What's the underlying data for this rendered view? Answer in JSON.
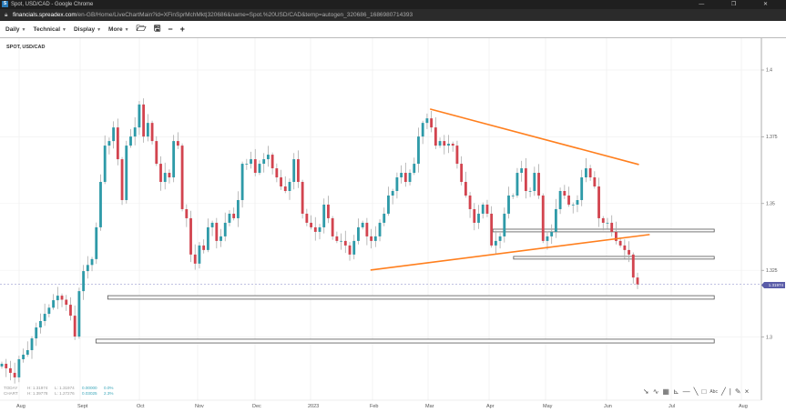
{
  "window": {
    "title": "Spot, USD/CAD - Google Chrome",
    "logo": "S",
    "url_host": "financials.spreadex.com",
    "url_path": "/en-GB/Home/LiveChartMain?id=XFinSprMchMkt|320686&name=Spot.%20USD/CAD&temp=autogen_320686_1686980714393",
    "controls": "— ❐ ✕"
  },
  "toolbar": {
    "menus": [
      "Daily",
      "Technical",
      "Display",
      "More"
    ],
    "icons": [
      "folder-open-icon",
      "save-icon",
      "zoom-out-icon",
      "zoom-in-icon"
    ]
  },
  "symbol": "SPOT, USD/CAD",
  "stats": {
    "today": {
      "label": "TODAY",
      "high": "H: 1.31974",
      "low": "L: 1.31974",
      "change": "0.00000",
      "pct": "0.0%"
    },
    "chart": {
      "label": "CHART",
      "high": "H: 1.39778",
      "low": "L: 1.27276",
      "change": "0.03025",
      "pct": "2.3%"
    }
  },
  "drawing_tools": [
    "arrow-icon",
    "curve-icon",
    "grid-icon",
    "fan-icon",
    "horizontal-line-icon",
    "diagonal-line-icon",
    "rectangle-icon",
    "text-icon",
    "line-icon",
    "vertical-line-icon",
    "pencil-icon",
    "close-icon"
  ],
  "colors": {
    "up": "#2e9aa8",
    "down": "#d2444f",
    "trendline": "#ff7f1e",
    "price_tag": "#5a5ca8"
  },
  "chart_data": {
    "type": "candlestick",
    "title": "SPOT, USD/CAD",
    "interval": "Daily",
    "first_date": "2022-07-25",
    "last_date": "2023-06-16",
    "last_price": "1.31974",
    "ylim": [
      1.28,
      1.41
    ],
    "y_ticks": [
      "1.4",
      "1.375",
      "1.35",
      "1.325",
      "1.3"
    ],
    "x_ticks": [
      "Aug",
      "Sept",
      "Oct",
      "Nov",
      "Dec",
      "2023",
      "Feb",
      "Mar",
      "Apr",
      "May",
      "Jun",
      "Jul",
      "Aug"
    ],
    "grid": true,
    "closes": [
      1.29,
      1.2883,
      1.2866,
      1.2849,
      1.2917,
      1.2934,
      1.2951,
      1.2995,
      1.3036,
      1.306,
      1.3087,
      1.311,
      1.3138,
      1.3155,
      1.314,
      1.3121,
      1.308,
      1.3002,
      1.3172,
      1.3247,
      1.327,
      1.3292,
      1.3411,
      1.3581,
      1.3717,
      1.3734,
      1.3785,
      1.3666,
      1.3513,
      1.3717,
      1.3751,
      1.3785,
      1.3871,
      1.3751,
      1.3802,
      1.3734,
      1.3649,
      1.3581,
      1.3615,
      1.3598,
      1.3734,
      1.3717,
      1.3479,
      1.3445,
      1.3309,
      1.3275,
      1.3343,
      1.3326,
      1.3411,
      1.3428,
      1.336,
      1.3377,
      1.3428,
      1.3462,
      1.3445,
      1.3513,
      1.3649,
      1.3649,
      1.3666,
      1.3615,
      1.3649,
      1.3666,
      1.3683,
      1.3632,
      1.3598,
      1.3564,
      1.3547,
      1.3581,
      1.3666,
      1.3581,
      1.3462,
      1.3428,
      1.3411,
      1.3394,
      1.3411,
      1.3496,
      1.3445,
      1.3377,
      1.336,
      1.336,
      1.3343,
      1.3309,
      1.336,
      1.3411,
      1.3428,
      1.3377,
      1.336,
      1.3377,
      1.3428,
      1.3462,
      1.353,
      1.3547,
      1.3598,
      1.3615,
      1.3581,
      1.3615,
      1.3649,
      1.3751,
      1.3802,
      1.3819,
      1.3785,
      1.3717,
      1.3734,
      1.3717,
      1.3724,
      1.3717,
      1.3649,
      1.3581,
      1.353,
      1.3479,
      1.3428,
      1.3462,
      1.3496,
      1.3462,
      1.3343,
      1.336,
      1.3377,
      1.3462,
      1.353,
      1.353,
      1.3615,
      1.3632,
      1.3547,
      1.3547,
      1.3615,
      1.353,
      1.336,
      1.3377,
      1.3394,
      1.3479,
      1.3547,
      1.353,
      1.3496,
      1.3496,
      1.3513,
      1.3598,
      1.3632,
      1.3598,
      1.3564,
      1.3445,
      1.3428,
      1.3428,
      1.3394,
      1.336,
      1.3343,
      1.3326,
      1.3309,
      1.3223,
      1.31974
    ],
    "trendlines": [
      {
        "from": [
          "2023-03-02",
          1.3854
        ],
        "to": [
          "2023-06-16",
          1.3646
        ]
      },
      {
        "from": [
          "2023-01-31",
          1.3251
        ],
        "to": [
          "2023-06-21",
          1.3384
        ]
      }
    ],
    "zones": [
      {
        "from": "2023-04-03",
        "to": "2023-07-20",
        "top": 1.3404,
        "bottom": 1.3394
      },
      {
        "from": "2023-04-14",
        "to": "2023-07-20",
        "top": 1.3302,
        "bottom": 1.3292
      },
      {
        "from": "2022-09-15",
        "to": "2023-07-20",
        "top": 1.3155,
        "bottom": 1.3142
      },
      {
        "from": "2022-09-09",
        "to": "2023-07-20",
        "top": 1.2992,
        "bottom": 1.2978
      }
    ]
  }
}
